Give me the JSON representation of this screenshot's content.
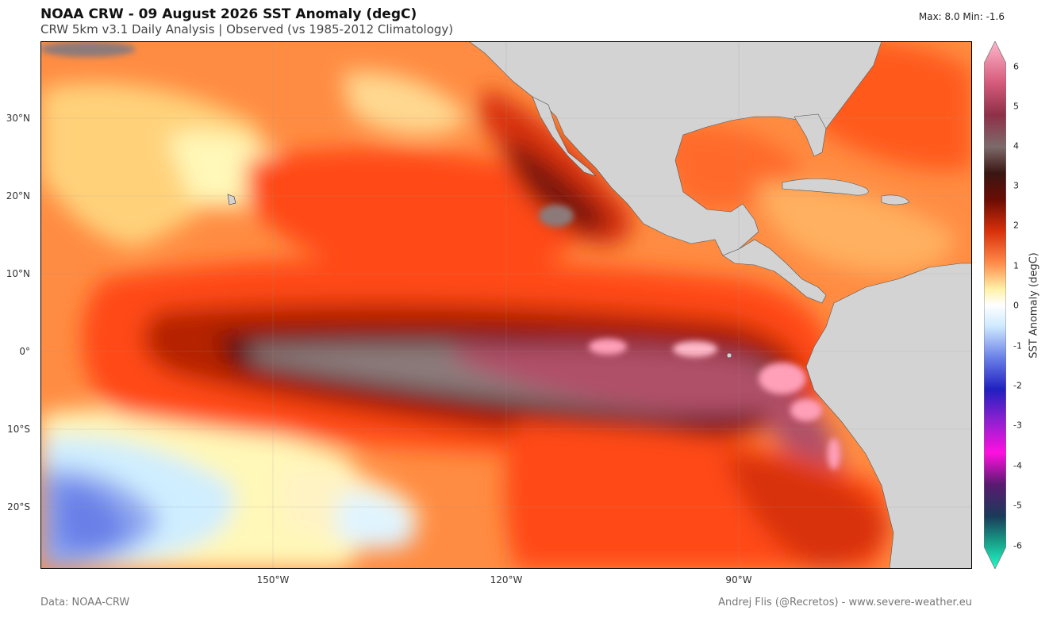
{
  "header": {
    "title": "NOAA CRW - 09 August 2026 SST Anomaly (degC)",
    "subtitle": "CRW 5km v3.1 Daily Analysis  |  Observed (vs 1985-2012 Climatology)",
    "stats": "Max: 8.0  Min: -1.6"
  },
  "map": {
    "lat_labels": [
      "30°N",
      "20°N",
      "10°N",
      "0°",
      "10°S",
      "20°S"
    ],
    "lon_labels": [
      "150°W",
      "120°W",
      "90°W"
    ],
    "colors": {
      "land": "#d3d3d3",
      "ocean_base": "#ff8c42",
      "warm": "#ff4a12",
      "very_warm": "#b52005",
      "hot": "#5a0f08",
      "extreme": "#8c7a7a",
      "peak": "#ff9fb8",
      "neutral": "#fff8b8",
      "cool": "#cfeeff",
      "cold": "#6a80e8"
    }
  },
  "colorbar": {
    "label": "SST Anomaly (degC)",
    "ticks": [
      "6",
      "5",
      "4",
      "3",
      "2",
      "1",
      "0",
      "-1",
      "-2",
      "-3",
      "-4",
      "-5",
      "-6"
    ]
  },
  "footer": {
    "left": "Data: NOAA-CRW",
    "right": "Andrej Flis (@Recretos) - www.severe-weather.eu"
  }
}
